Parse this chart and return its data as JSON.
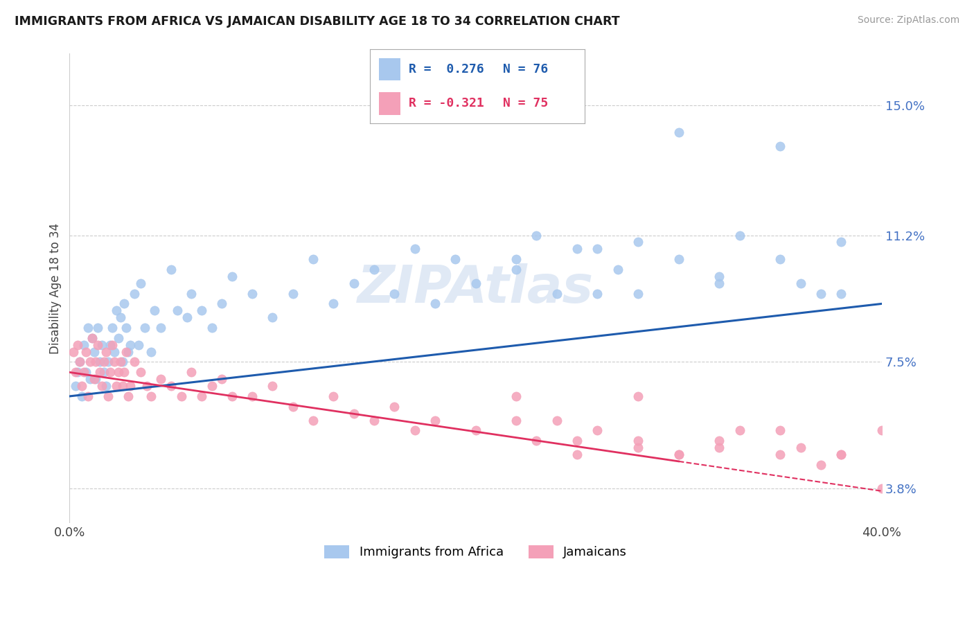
{
  "title": "IMMIGRANTS FROM AFRICA VS JAMAICAN DISABILITY AGE 18 TO 34 CORRELATION CHART",
  "source": "Source: ZipAtlas.com",
  "ylabel": "Disability Age 18 to 34",
  "yticks": [
    3.8,
    7.5,
    11.2,
    15.0
  ],
  "ytick_labels": [
    "3.8%",
    "7.5%",
    "11.2%",
    "15.0%"
  ],
  "xlim": [
    0.0,
    40.0
  ],
  "ylim": [
    2.8,
    16.5
  ],
  "series1_label": "Immigrants from Africa",
  "series1_color": "#A8C8EE",
  "series2_label": "Jamaicans",
  "series2_color": "#F4A0B8",
  "trend1_color": "#1E5BAD",
  "trend2_color": "#E03060",
  "watermark": "ZIPAtlas",
  "legend_R1": "R =  0.276",
  "legend_N1": "N = 76",
  "legend_R2": "R = -0.321",
  "legend_N2": "N = 75",
  "trend1_x0": 0.0,
  "trend1_y0": 6.5,
  "trend1_x1": 40.0,
  "trend1_y1": 9.2,
  "trend2_x0": 0.0,
  "trend2_y0": 7.2,
  "trend2_x1": 30.0,
  "trend2_y1": 4.6,
  "scatter1_x": [
    0.3,
    0.4,
    0.5,
    0.6,
    0.7,
    0.8,
    0.9,
    1.0,
    1.1,
    1.2,
    1.3,
    1.4,
    1.5,
    1.6,
    1.7,
    1.8,
    1.9,
    2.0,
    2.1,
    2.2,
    2.3,
    2.4,
    2.5,
    2.6,
    2.7,
    2.8,
    2.9,
    3.0,
    3.2,
    3.4,
    3.5,
    3.7,
    4.0,
    4.2,
    4.5,
    5.0,
    5.3,
    5.8,
    6.0,
    6.5,
    7.0,
    7.5,
    8.0,
    9.0,
    10.0,
    11.0,
    12.0,
    13.0,
    14.0,
    15.0,
    16.0,
    17.0,
    18.0,
    19.0,
    20.0,
    22.0,
    23.0,
    25.0,
    26.0,
    27.0,
    28.0,
    30.0,
    32.0,
    33.0,
    35.0,
    36.0,
    37.0,
    38.0,
    22.0,
    24.0,
    26.0,
    28.0,
    30.0,
    32.0,
    35.0,
    38.0
  ],
  "scatter1_y": [
    6.8,
    7.2,
    7.5,
    6.5,
    8.0,
    7.2,
    8.5,
    7.0,
    8.2,
    7.8,
    7.0,
    8.5,
    7.5,
    8.0,
    7.2,
    6.8,
    7.5,
    8.0,
    8.5,
    7.8,
    9.0,
    8.2,
    8.8,
    7.5,
    9.2,
    8.5,
    7.8,
    8.0,
    9.5,
    8.0,
    9.8,
    8.5,
    7.8,
    9.0,
    8.5,
    10.2,
    9.0,
    8.8,
    9.5,
    9.0,
    8.5,
    9.2,
    10.0,
    9.5,
    8.8,
    9.5,
    10.5,
    9.2,
    9.8,
    10.2,
    9.5,
    10.8,
    9.2,
    10.5,
    9.8,
    10.5,
    11.2,
    10.8,
    9.5,
    10.2,
    11.0,
    10.5,
    9.8,
    11.2,
    10.5,
    9.8,
    9.5,
    11.0,
    10.2,
    9.5,
    10.8,
    9.5,
    14.2,
    10.0,
    13.8,
    9.5
  ],
  "scatter2_x": [
    0.2,
    0.3,
    0.4,
    0.5,
    0.6,
    0.7,
    0.8,
    0.9,
    1.0,
    1.1,
    1.2,
    1.3,
    1.4,
    1.5,
    1.6,
    1.7,
    1.8,
    1.9,
    2.0,
    2.1,
    2.2,
    2.3,
    2.4,
    2.5,
    2.6,
    2.7,
    2.8,
    2.9,
    3.0,
    3.2,
    3.5,
    3.8,
    4.0,
    4.5,
    5.0,
    5.5,
    6.0,
    6.5,
    7.0,
    7.5,
    8.0,
    9.0,
    10.0,
    11.0,
    12.0,
    13.0,
    14.0,
    15.0,
    16.0,
    17.0,
    18.0,
    20.0,
    22.0,
    23.0,
    24.0,
    25.0,
    26.0,
    28.0,
    30.0,
    32.0,
    33.0,
    35.0,
    36.0,
    37.0,
    38.0,
    40.0,
    22.0,
    25.0,
    28.0,
    32.0,
    35.0,
    38.0,
    40.0,
    30.0,
    28.0
  ],
  "scatter2_y": [
    7.8,
    7.2,
    8.0,
    7.5,
    6.8,
    7.2,
    7.8,
    6.5,
    7.5,
    8.2,
    7.0,
    7.5,
    8.0,
    7.2,
    6.8,
    7.5,
    7.8,
    6.5,
    7.2,
    8.0,
    7.5,
    6.8,
    7.2,
    7.5,
    6.8,
    7.2,
    7.8,
    6.5,
    6.8,
    7.5,
    7.2,
    6.8,
    6.5,
    7.0,
    6.8,
    6.5,
    7.2,
    6.5,
    6.8,
    7.0,
    6.5,
    6.5,
    6.8,
    6.2,
    5.8,
    6.5,
    6.0,
    5.8,
    6.2,
    5.5,
    5.8,
    5.5,
    5.8,
    5.2,
    5.8,
    5.2,
    5.5,
    5.0,
    4.8,
    5.2,
    5.5,
    4.8,
    5.0,
    4.5,
    4.8,
    5.5,
    6.5,
    4.8,
    5.2,
    5.0,
    5.5,
    4.8,
    3.8,
    4.8,
    6.5
  ]
}
